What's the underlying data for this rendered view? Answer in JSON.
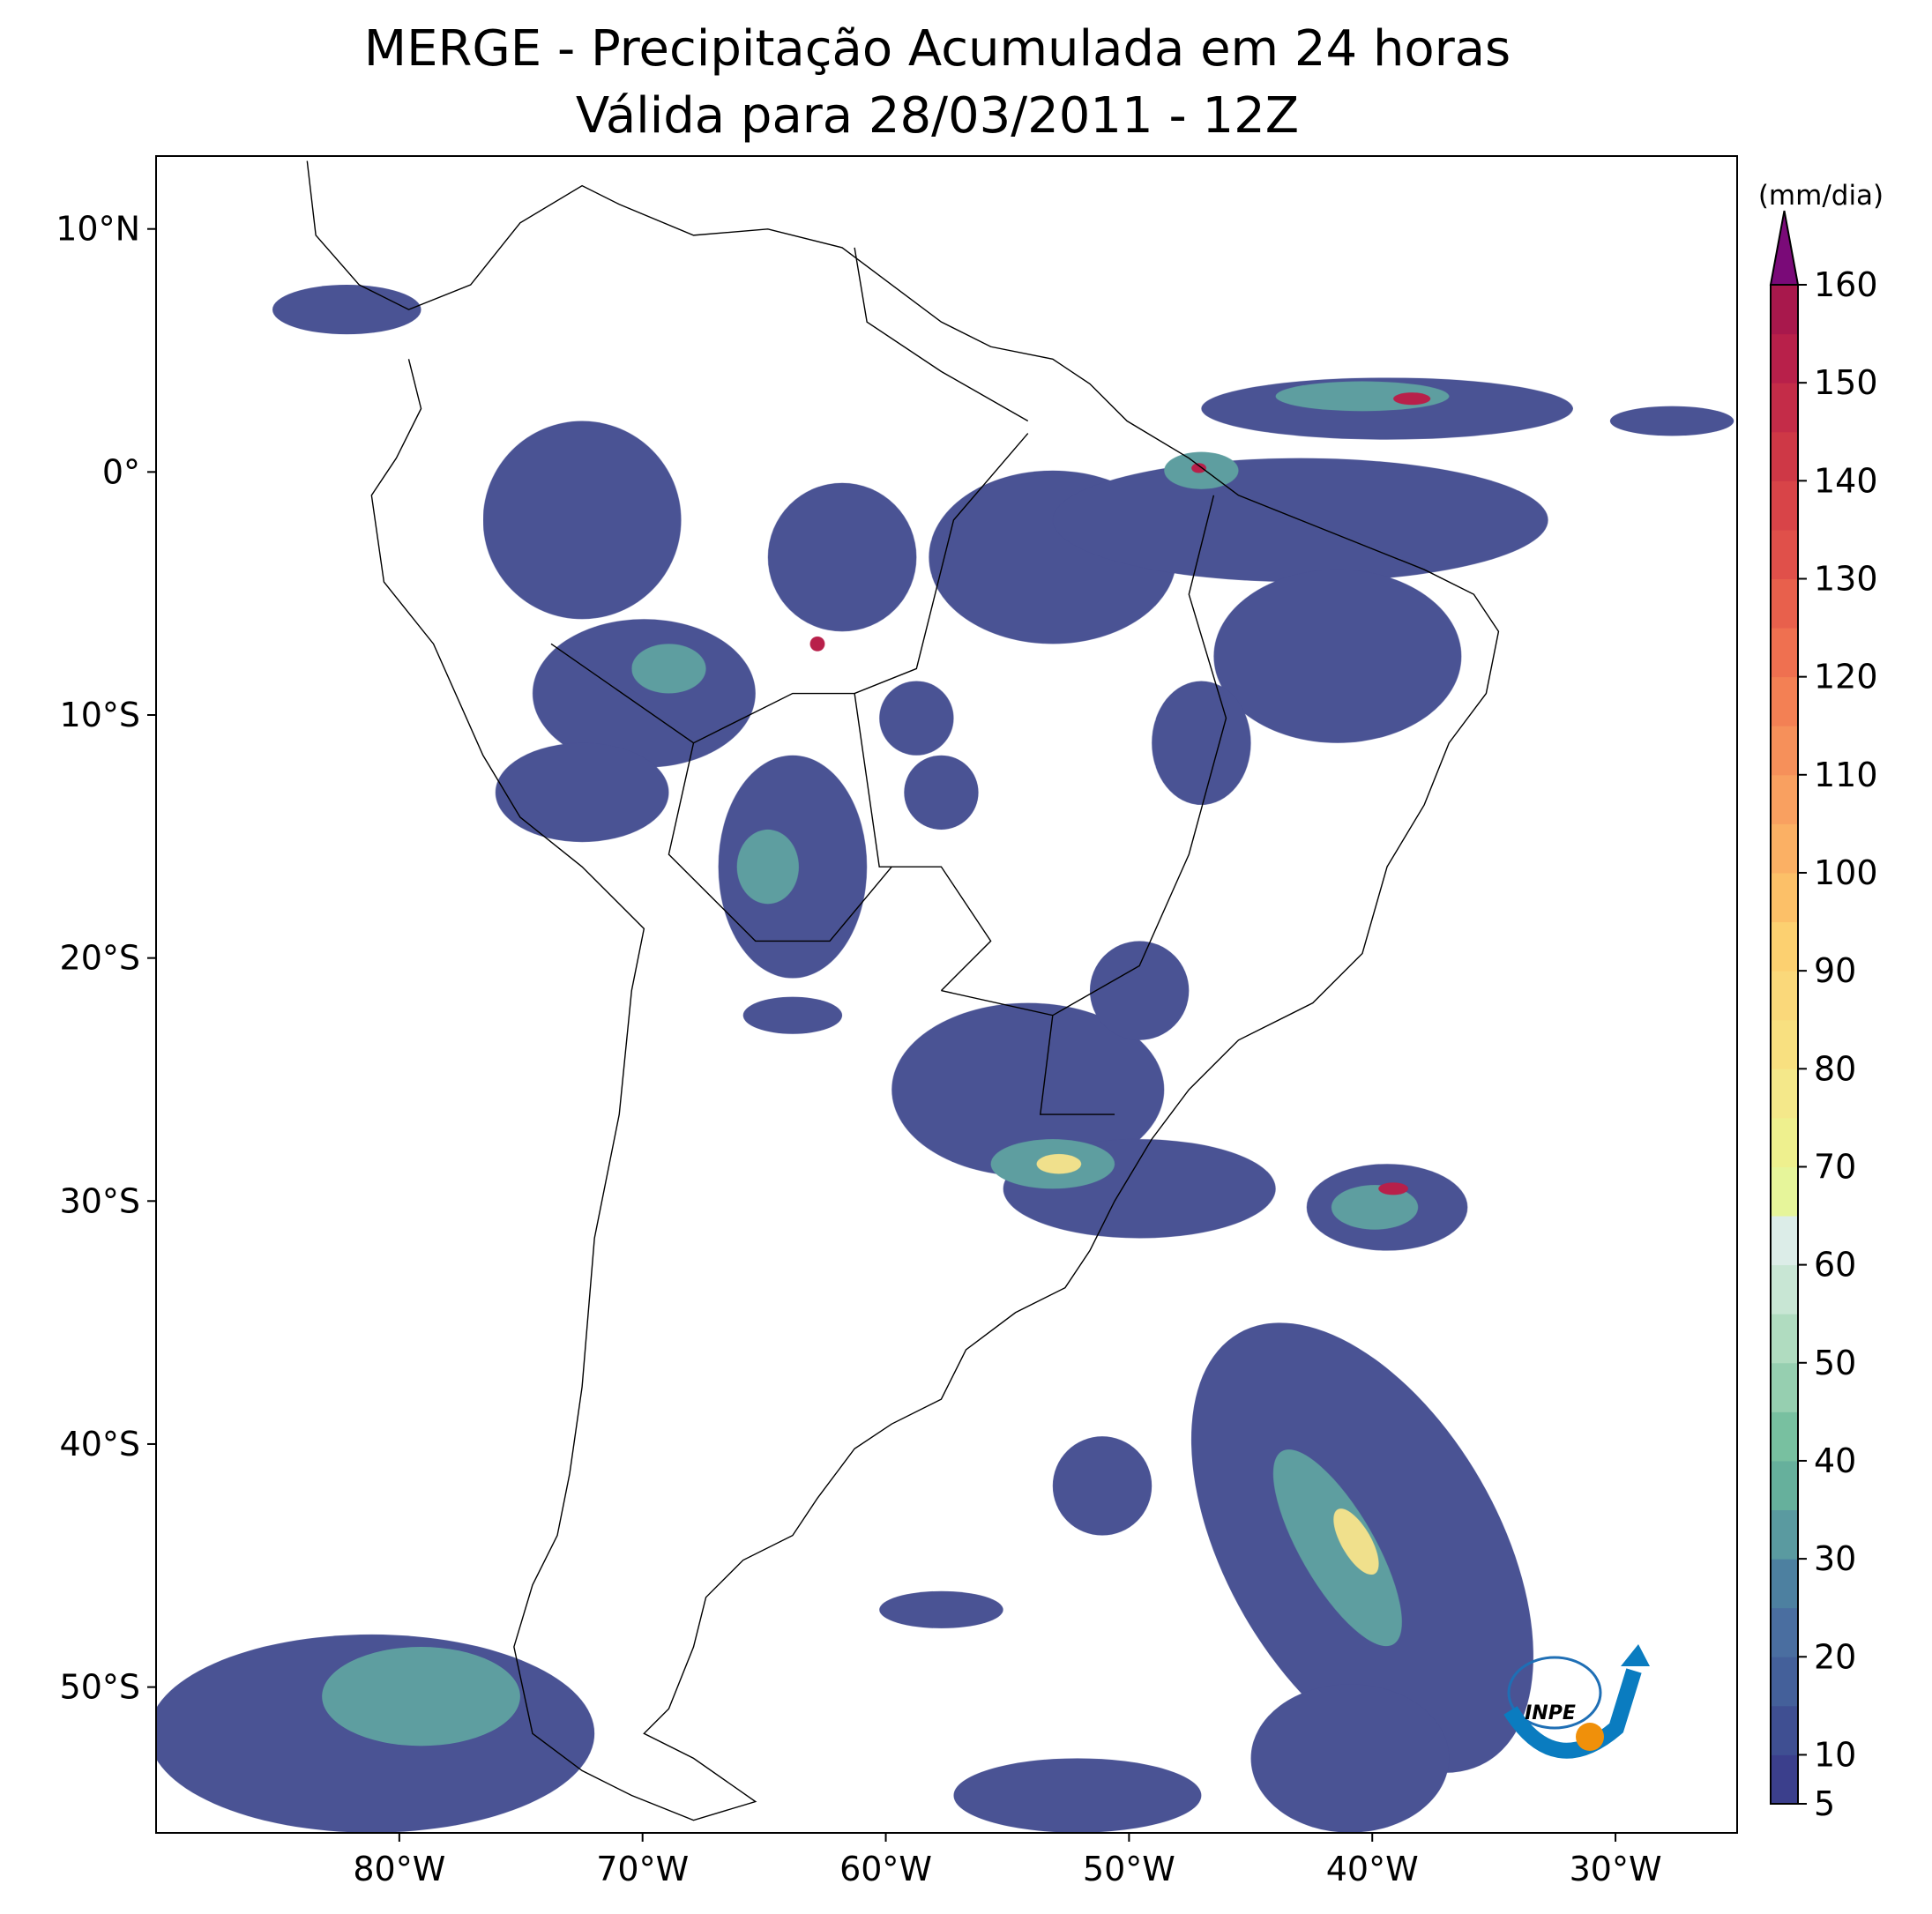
{
  "map": {
    "title": "MERGE - Precipitação Acumulada em 24 horas",
    "subtitle": "Válida para 28/03/2011 - 12Z",
    "xlim": [
      -90,
      -25
    ],
    "ylim": [
      -56,
      13
    ],
    "xticks": [
      {
        "value": -80,
        "label": "80°W"
      },
      {
        "value": -70,
        "label": "70°W"
      },
      {
        "value": -60,
        "label": "60°W"
      },
      {
        "value": -50,
        "label": "50°W"
      },
      {
        "value": -40,
        "label": "40°W"
      },
      {
        "value": -30,
        "label": "30°W"
      }
    ],
    "yticks": [
      {
        "value": 10,
        "label": "10°N"
      },
      {
        "value": 0,
        "label": "0°"
      },
      {
        "value": -10,
        "label": "10°S"
      },
      {
        "value": -20,
        "label": "20°S"
      },
      {
        "value": -30,
        "label": "30°S"
      },
      {
        "value": -40,
        "label": "40°S"
      },
      {
        "value": -50,
        "label": "50°S"
      }
    ]
  },
  "colorbar": {
    "label": "(mm/dia)",
    "ylim": [
      5,
      160
    ],
    "yticks": [
      5,
      10,
      20,
      30,
      40,
      50,
      60,
      70,
      80,
      90,
      100,
      110,
      120,
      130,
      140,
      150,
      160
    ],
    "colors": [
      "#3b3f8c",
      "#3f4f92",
      "#44609a",
      "#4a6ea0",
      "#4d80a0",
      "#5a9aa0",
      "#66b09c",
      "#78c0a0",
      "#96cfb0",
      "#b0dcc0",
      "#c8e6d4",
      "#dcede8",
      "#e6f59a",
      "#eef08e",
      "#f4e88a",
      "#f8e080",
      "#fad87a",
      "#fcd070",
      "#fcc068",
      "#fbb064",
      "#f9a060",
      "#f6905a",
      "#f38054",
      "#ef7050",
      "#e8604c",
      "#e0504a",
      "#d84448",
      "#ce3846",
      "#c42c48",
      "#b8204a",
      "#a8184c"
    ],
    "extend_color": "#7a0a78"
  },
  "logo": {
    "text": "INPE"
  }
}
